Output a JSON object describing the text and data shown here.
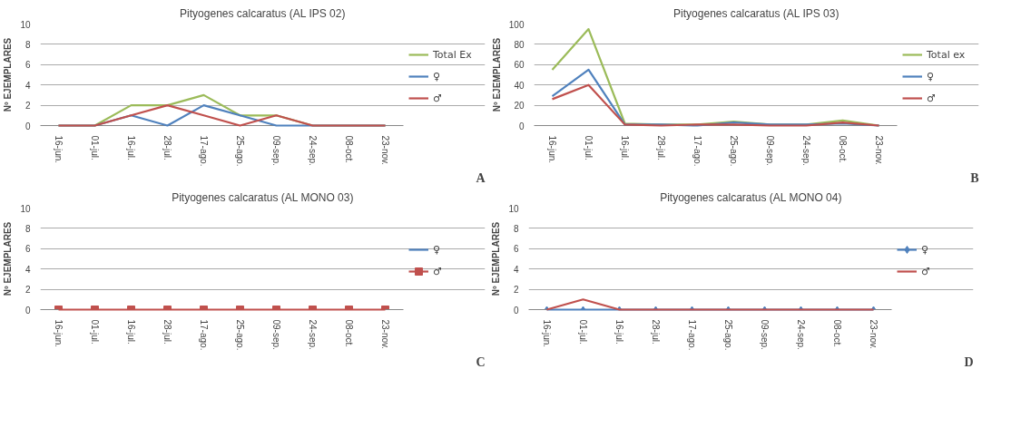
{
  "chart_data": [
    {
      "type": "line",
      "title": "Pityogenes calcaratus (AL IPS 02)",
      "ylabel": "Nº EJEMPLARES",
      "categories": [
        "16-jun.",
        "01-jul.",
        "16-jul.",
        "28-jul.",
        "17-ago.",
        "25-ago.",
        "09-sep.",
        "24-sep.",
        "08-oct.",
        "23-nov."
      ],
      "ylim": [
        0,
        10
      ],
      "yticks": [
        0,
        2,
        4,
        6,
        8,
        10
      ],
      "grid": "y",
      "legend": "right",
      "annotations": [
        "A"
      ],
      "series": [
        {
          "name": "Total Ex",
          "color": "#9bbb59",
          "values": [
            0,
            0,
            2,
            2,
            3,
            1,
            1,
            0,
            0,
            0
          ]
        },
        {
          "name": "♀",
          "color": "#4f81bd",
          "values": [
            0,
            0,
            1,
            0,
            2,
            1,
            0,
            0,
            0,
            0
          ]
        },
        {
          "name": "♂",
          "color": "#c0504d",
          "values": [
            0,
            0,
            1,
            2,
            1,
            0,
            1,
            0,
            0,
            0
          ]
        }
      ]
    },
    {
      "type": "line",
      "title": "Pityogenes calcaratus (AL IPS 03)",
      "ylabel": "Nº EJEMPLARES",
      "categories": [
        "16-jun.",
        "01-jul.",
        "16-jul.",
        "28-jul.",
        "17-ago.",
        "25-ago.",
        "09-sep.",
        "24-sep.",
        "08-oct.",
        "23-nov."
      ],
      "ylim": [
        0,
        100
      ],
      "yticks": [
        0,
        20,
        40,
        60,
        80,
        100
      ],
      "grid": "y",
      "legend": "right",
      "annotations": [
        "B"
      ],
      "series": [
        {
          "name": "Total ex",
          "color": "#9bbb59",
          "values": [
            55,
            95,
            2,
            1,
            1,
            4,
            1,
            1,
            5,
            0
          ]
        },
        {
          "name": "♀",
          "color": "#4f81bd",
          "values": [
            29,
            55,
            1,
            1,
            0,
            3,
            1,
            1,
            2,
            0
          ]
        },
        {
          "name": "♂",
          "color": "#c0504d",
          "values": [
            26,
            40,
            1,
            0,
            1,
            1,
            0,
            0,
            3,
            0
          ]
        }
      ]
    },
    {
      "type": "line",
      "title": "Pityogenes calcaratus (AL MONO 03)",
      "ylabel": "Nº EJEMPLARES",
      "categories": [
        "16-jun.",
        "01-jul.",
        "16-jul.",
        "28-jul.",
        "17-ago.",
        "25-ago.",
        "09-sep.",
        "24-sep.",
        "08-oct.",
        "23-nov."
      ],
      "ylim": [
        0,
        10
      ],
      "yticks": [
        0,
        2,
        4,
        6,
        8,
        10
      ],
      "grid": "y",
      "legend": "right",
      "annotations": [
        "C"
      ],
      "series": [
        {
          "name": "♀",
          "color": "#4f81bd",
          "marker": "diamond",
          "values": [
            null,
            null,
            null,
            null,
            null,
            null,
            null,
            null,
            null,
            null
          ]
        },
        {
          "name": "♂",
          "color": "#c0504d",
          "marker": "square",
          "values": [
            0,
            0,
            0,
            0,
            0,
            0,
            0,
            0,
            0,
            0
          ]
        }
      ]
    },
    {
      "type": "line",
      "title": "Pityogenes calcaratus (AL MONO 04)",
      "ylabel": "Nº EJEMPLARES",
      "categories": [
        "16-jun.",
        "01-jul.",
        "16-jul.",
        "28-jul.",
        "17-ago.",
        "25-ago.",
        "09-sep.",
        "24-sep.",
        "08-oct.",
        "23-nov."
      ],
      "ylim": [
        0,
        10
      ],
      "yticks": [
        0,
        2,
        4,
        6,
        8,
        10
      ],
      "grid": "y",
      "legend": "right",
      "annotations": [
        "D"
      ],
      "series": [
        {
          "name": "♀",
          "color": "#4f81bd",
          "marker": "diamond",
          "values": [
            0,
            0,
            0,
            0,
            0,
            0,
            0,
            0,
            0,
            0
          ]
        },
        {
          "name": "♂",
          "color": "#c0504d",
          "values": [
            0,
            1,
            0,
            0,
            0,
            0,
            0,
            0,
            0,
            0
          ]
        }
      ]
    }
  ]
}
